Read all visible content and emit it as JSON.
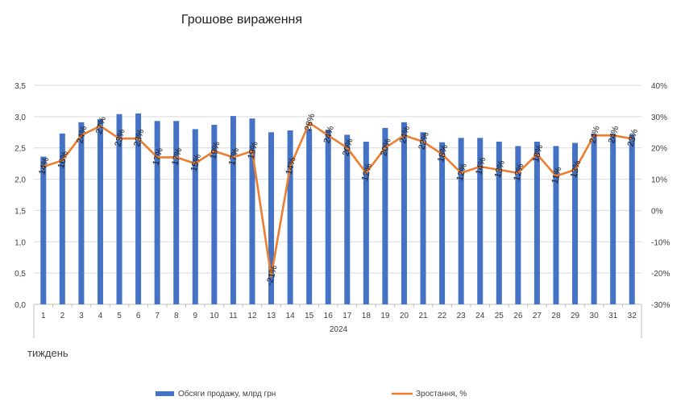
{
  "chart_data": {
    "type": "bar+line",
    "title": "Грошове вираження",
    "xlabel": "тиждень",
    "x_group_label": "2024",
    "categories": [
      "1",
      "2",
      "3",
      "4",
      "5",
      "6",
      "7",
      "8",
      "9",
      "10",
      "11",
      "12",
      "13",
      "14",
      "15",
      "16",
      "17",
      "18",
      "19",
      "20",
      "21",
      "22",
      "23",
      "24",
      "25",
      "26",
      "27",
      "28",
      "29",
      "30",
      "31",
      "32"
    ],
    "y_left": {
      "ylim": [
        0,
        3.5
      ],
      "ticks": [
        "0,0",
        "0,5",
        "1,0",
        "1,5",
        "2,0",
        "2,5",
        "3,0",
        "3,5"
      ]
    },
    "y_right": {
      "ylim": [
        -30,
        40
      ],
      "ticks": [
        "-30%",
        "-20%",
        "-10%",
        "0%",
        "10%",
        "20%",
        "30%",
        "40%"
      ]
    },
    "series": [
      {
        "name": "Обсяги продажу, млрд грн",
        "kind": "bar",
        "color": "#4472C4",
        "axis": "left",
        "values": [
          2.36,
          2.73,
          2.91,
          2.96,
          3.04,
          3.05,
          2.93,
          2.93,
          2.8,
          2.87,
          3.01,
          2.97,
          2.75,
          2.78,
          2.8,
          2.79,
          2.71,
          2.6,
          2.82,
          2.91,
          2.75,
          2.59,
          2.66,
          2.66,
          2.6,
          2.53,
          2.6,
          2.53,
          2.58,
          2.73,
          2.73,
          2.71
        ]
      },
      {
        "name": "Зростання, %",
        "kind": "line",
        "color": "#ED7D31",
        "axis": "right",
        "values": [
          14,
          16,
          24,
          27,
          23,
          23,
          17,
          17,
          15,
          19,
          17,
          19,
          -21,
          14,
          28,
          24,
          20,
          12,
          20,
          24,
          22,
          18,
          12,
          14,
          13,
          12,
          18,
          11,
          13,
          24,
          24,
          23
        ],
        "labels": [
          "14%",
          "16%",
          "24%",
          "27%",
          "23%",
          "23%",
          "17%",
          "17%",
          "15%",
          "19%",
          "17%",
          "19%",
          "-21%",
          "14%",
          "28%",
          "24%",
          "20%",
          "12%",
          "20%",
          "24%",
          "22%",
          "18%",
          "12%",
          "14%",
          "13%",
          "12%",
          "18%",
          "11%",
          "13%",
          "24%",
          "24%",
          "23%"
        ]
      }
    ],
    "legend_position": "bottom",
    "grid": "horizontal"
  }
}
